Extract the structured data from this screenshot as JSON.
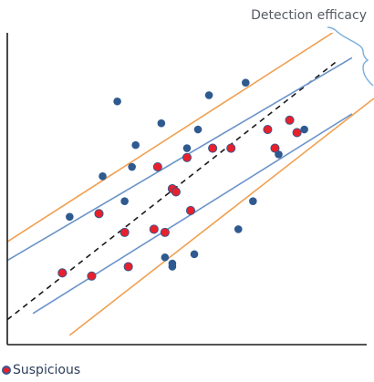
{
  "chart_data": {
    "type": "scatter",
    "title": "Detection efficacy",
    "xlabel": "",
    "ylabel": "",
    "xlim": [
      0,
      100
    ],
    "ylim": [
      0,
      100
    ],
    "grid": false,
    "legend_position": "bottom-left",
    "colors": {
      "axis": "#1a1a1a",
      "blue_point": "#2f5a90",
      "red_point": "#e8202c",
      "blue_line": "#6b93c8",
      "orange_line": "#f0a050",
      "center_line": "#1a1a1a",
      "bracket": "#7aaedb"
    },
    "series": [
      {
        "name": "Suspicious",
        "marker": "red-fill-blue-ring",
        "points": [
          [
            15,
            23
          ],
          [
            23,
            22
          ],
          [
            25,
            42
          ],
          [
            32,
            36
          ],
          [
            33,
            25
          ],
          [
            40,
            37
          ],
          [
            41,
            57
          ],
          [
            43,
            36
          ],
          [
            45,
            50
          ],
          [
            46,
            49
          ],
          [
            49,
            60
          ],
          [
            50,
            43
          ],
          [
            56,
            63
          ],
          [
            61,
            63
          ],
          [
            71,
            69
          ],
          [
            73,
            63
          ],
          [
            77,
            72
          ],
          [
            79,
            68
          ]
        ]
      },
      {
        "name": "",
        "marker": "blue",
        "points": [
          [
            17,
            41
          ],
          [
            26,
            54
          ],
          [
            30,
            78
          ],
          [
            32,
            46
          ],
          [
            34,
            57
          ],
          [
            35,
            64
          ],
          [
            42,
            71
          ],
          [
            43,
            28
          ],
          [
            45,
            25
          ],
          [
            45,
            26
          ],
          [
            49,
            63
          ],
          [
            51,
            29
          ],
          [
            52,
            69
          ],
          [
            55,
            80
          ],
          [
            63,
            37
          ],
          [
            65,
            84
          ],
          [
            67,
            46
          ],
          [
            74,
            61
          ],
          [
            81,
            69
          ]
        ]
      }
    ],
    "bands": {
      "center": {
        "x": [
          0,
          90
        ],
        "y": [
          8,
          91
        ]
      },
      "inner_upper": {
        "x": [
          0,
          94
        ],
        "y": [
          27,
          92
        ]
      },
      "inner_lower": {
        "x": [
          7,
          94
        ],
        "y": [
          10,
          74
        ]
      },
      "outer_upper": {
        "x": [
          0,
          90
        ],
        "y": [
          33,
          101
        ]
      },
      "outer_lower": {
        "x": [
          17,
          100
        ],
        "y": [
          3,
          79
        ]
      }
    },
    "legend": [
      "Suspicious"
    ]
  }
}
